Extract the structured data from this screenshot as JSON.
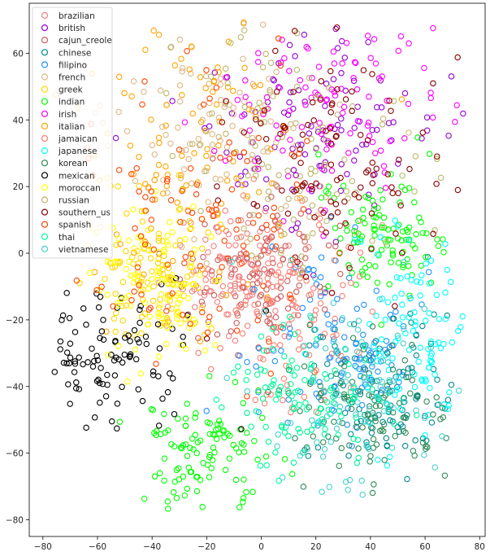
{
  "chart_data": {
    "type": "scatter",
    "title": "",
    "xlabel": "",
    "ylabel": "",
    "xlim": [
      -85,
      82
    ],
    "ylim": [
      -85,
      75
    ],
    "x_ticks": [
      -80,
      -60,
      -40,
      -20,
      0,
      20,
      40,
      60,
      80
    ],
    "y_ticks": [
      -80,
      -60,
      -40,
      -20,
      0,
      20,
      40,
      60
    ],
    "grid": false,
    "legend_position": "top-left",
    "marker": "hollow-circle",
    "series": [
      {
        "name": "brazilian",
        "color": "#f08080",
        "regions": [
          {
            "cx": -10,
            "cy": -5,
            "sx": 12,
            "sy": 10
          }
        ]
      },
      {
        "name": "british",
        "color": "#9400d3",
        "regions": [
          {
            "cx": 20,
            "cy": 35,
            "sx": 20,
            "sy": 18
          }
        ]
      },
      {
        "name": "cajun_creole",
        "color": "#cd5c5c",
        "regions": [
          {
            "cx": 0,
            "cy": -5,
            "sx": 14,
            "sy": 10
          }
        ]
      },
      {
        "name": "chinese",
        "color": "#008b8b",
        "regions": [
          {
            "cx": 45,
            "cy": -42,
            "sx": 12,
            "sy": 12
          }
        ]
      },
      {
        "name": "filipino",
        "color": "#1e90ff",
        "regions": [
          {
            "cx": 25,
            "cy": -30,
            "sx": 15,
            "sy": 15
          }
        ]
      },
      {
        "name": "french",
        "color": "#deb887",
        "regions": [
          {
            "cx": -15,
            "cy": 35,
            "sx": 22,
            "sy": 18
          }
        ]
      },
      {
        "name": "greek",
        "color": "#ffd700",
        "regions": [
          {
            "cx": -40,
            "cy": -5,
            "sx": 10,
            "sy": 10
          }
        ]
      },
      {
        "name": "indian",
        "color": "#00ff00",
        "regions": [
          {
            "cx": -20,
            "cy": -60,
            "sx": 12,
            "sy": 9
          },
          {
            "cx": 45,
            "cy": 5,
            "sx": 12,
            "sy": 10
          }
        ]
      },
      {
        "name": "irish",
        "color": "#ff00ff",
        "regions": [
          {
            "cx": 25,
            "cy": 45,
            "sx": 20,
            "sy": 15
          }
        ]
      },
      {
        "name": "italian",
        "color": "#ffa500",
        "regions": [
          {
            "cx": -25,
            "cy": 30,
            "sx": 20,
            "sy": 20
          }
        ]
      },
      {
        "name": "jamaican",
        "color": "#fa8072",
        "regions": [
          {
            "cx": 10,
            "cy": -15,
            "sx": 15,
            "sy": 15
          }
        ]
      },
      {
        "name": "japanese",
        "color": "#00ffff",
        "regions": [
          {
            "cx": 55,
            "cy": -25,
            "sx": 10,
            "sy": 15
          }
        ]
      },
      {
        "name": "korean",
        "color": "#2e8b57",
        "regions": [
          {
            "cx": 40,
            "cy": -50,
            "sx": 15,
            "sy": 12
          }
        ]
      },
      {
        "name": "mexican",
        "color": "#000000",
        "regions": [
          {
            "cx": -55,
            "cy": -30,
            "sx": 15,
            "sy": 10
          }
        ]
      },
      {
        "name": "moroccan",
        "color": "#ffff00",
        "regions": [
          {
            "cx": -35,
            "cy": -10,
            "sx": 12,
            "sy": 12
          }
        ]
      },
      {
        "name": "russian",
        "color": "#bdb76b",
        "regions": [
          {
            "cx": 10,
            "cy": 30,
            "sx": 20,
            "sy": 20
          }
        ]
      },
      {
        "name": "southern_us",
        "color": "#8b0000",
        "regions": [
          {
            "cx": 30,
            "cy": 30,
            "sx": 22,
            "sy": 20
          }
        ]
      },
      {
        "name": "spanish",
        "color": "#ff4500",
        "regions": [
          {
            "cx": -20,
            "cy": 10,
            "sx": 20,
            "sy": 20
          }
        ]
      },
      {
        "name": "thai",
        "color": "#00fa9a",
        "regions": [
          {
            "cx": 15,
            "cy": -45,
            "sx": 15,
            "sy": 10
          }
        ]
      },
      {
        "name": "vietnamese",
        "color": "#48d1cc",
        "regions": [
          {
            "cx": 30,
            "cy": -40,
            "sx": 15,
            "sy": 15
          }
        ]
      }
    ]
  }
}
